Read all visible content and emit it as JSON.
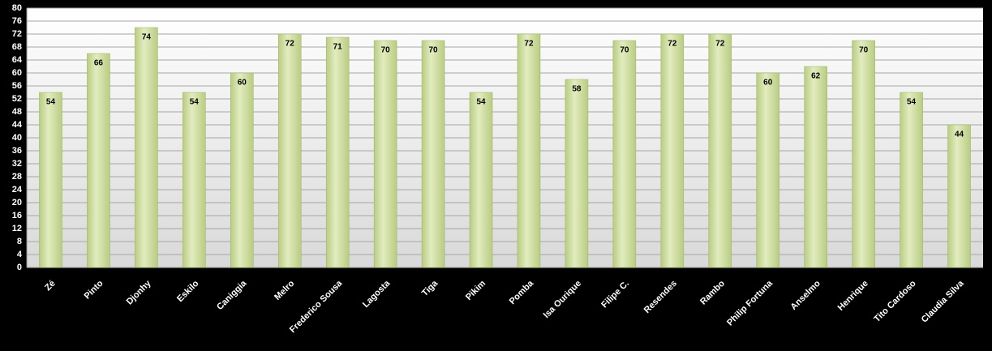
{
  "chart_data": {
    "type": "bar",
    "categories": [
      "Zé",
      "Pinto",
      "Djonhy",
      "Eskilo",
      "Caniggia",
      "Melro",
      "Frederico Sousa",
      "Lagosta",
      "Tiga",
      "Pikim",
      "Pomba",
      "Isa Ourique",
      "Filipe C.",
      "Resendes",
      "Rambo",
      "Philip Fortuna",
      "Anselmo",
      "Henrique",
      "Tito Cardoso",
      "Claudia Silva"
    ],
    "values": [
      54,
      66,
      74,
      54,
      60,
      72,
      71,
      70,
      70,
      54,
      72,
      58,
      70,
      72,
      72,
      60,
      62,
      70,
      54,
      44
    ],
    "color": "#d7e4a8",
    "ylim": [
      0,
      80
    ],
    "yticks": [
      0,
      4,
      8,
      12,
      16,
      20,
      24,
      28,
      32,
      36,
      40,
      44,
      48,
      52,
      56,
      60,
      64,
      68,
      72,
      76,
      80
    ],
    "grid": true
  }
}
